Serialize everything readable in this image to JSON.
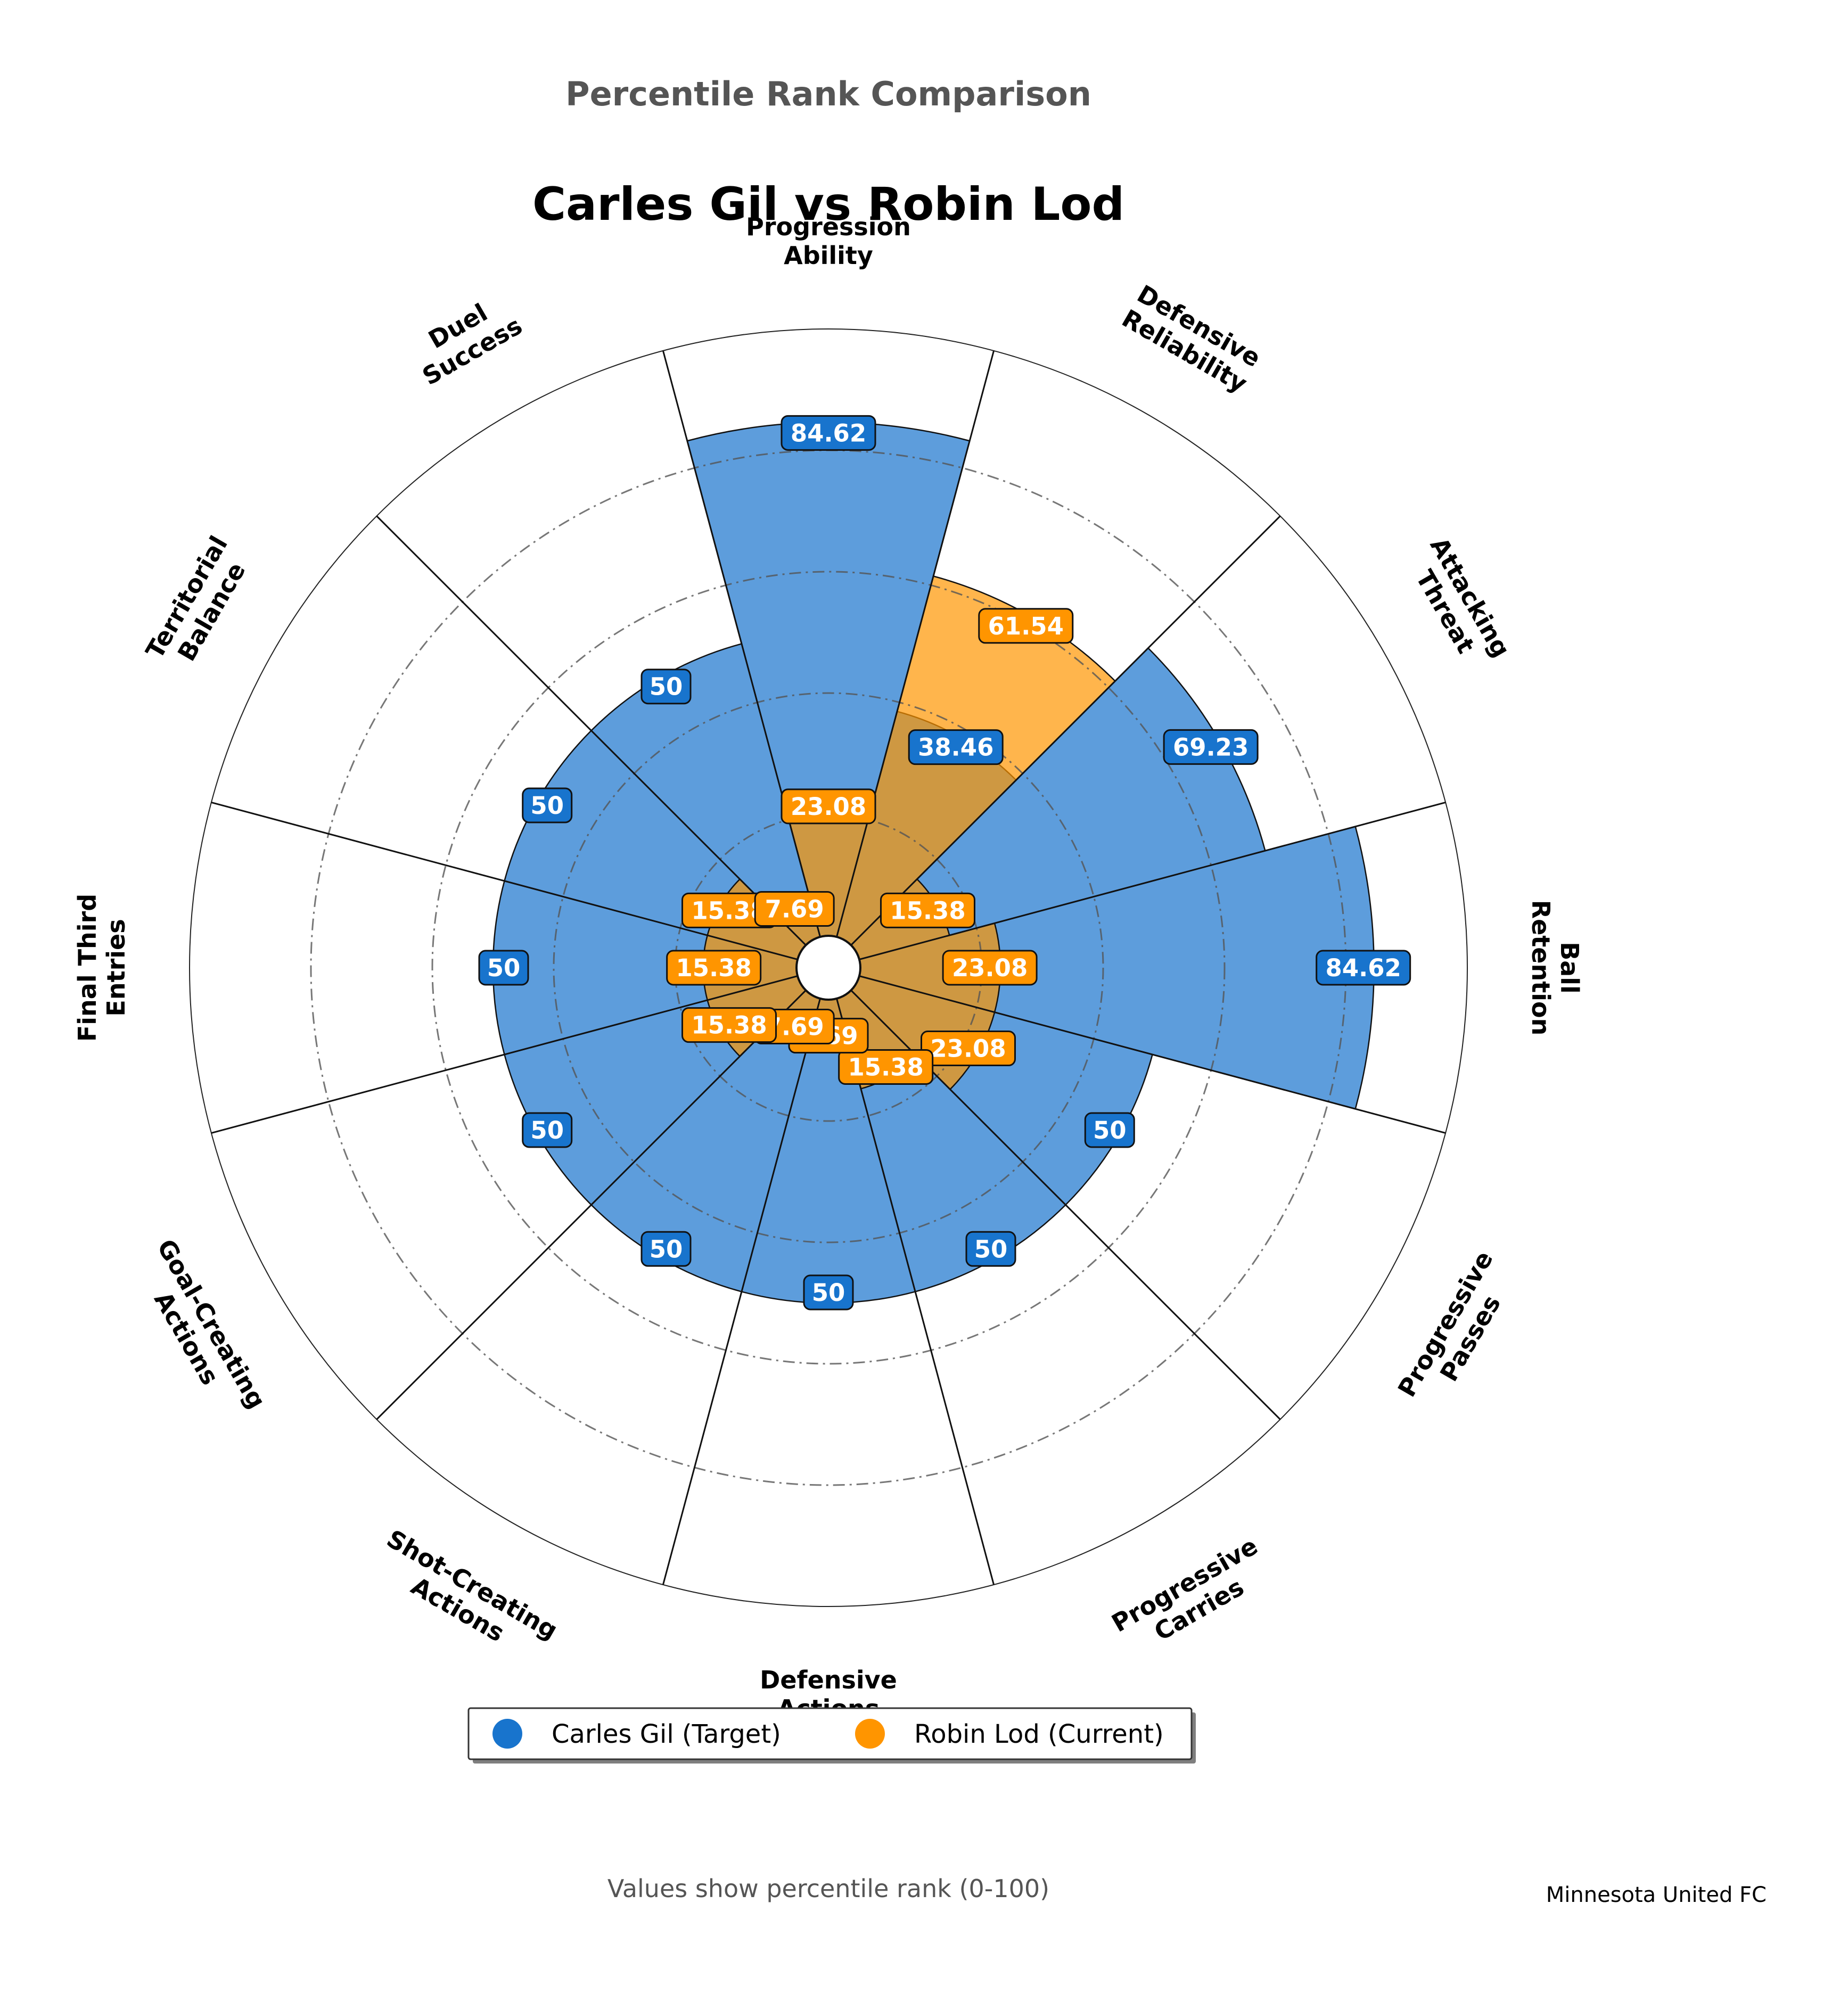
{
  "header": {
    "suptitle": "Percentile Rank Comparison",
    "title": "Carles Gil vs Robin Lod"
  },
  "chart_data": {
    "type": "polar-bar",
    "title": "Carles Gil vs Robin Lod",
    "subtitle": "Percentile Rank Comparison",
    "categories": [
      "Progression\nAbility",
      "Defensive\nReliability",
      "Attacking\nThreat",
      "Ball\nRetention",
      "Progressive\nPasses",
      "Progressive\nCarries",
      "Defensive\nActions",
      "Shot-Creating\nActions",
      "Goal-Creating\nActions",
      "Final Third\nEntries",
      "Territorial\nBalance",
      "Duel\nSuccess"
    ],
    "series": [
      {
        "name": "Carles Gil (Target)",
        "color": "#1874cd",
        "values": [
          84.62,
          38.46,
          69.23,
          84.62,
          50,
          50,
          50,
          50,
          50,
          50,
          50,
          50
        ]
      },
      {
        "name": "Robin Lod (Current)",
        "color": "#ff9500",
        "values": [
          23.08,
          61.54,
          15.38,
          23.08,
          23.08,
          15.38,
          7.69,
          7.69,
          15.38,
          15.38,
          15.38,
          7.69
        ]
      }
    ],
    "value_labels": [
      [
        "84.62",
        "38.46",
        "69.23",
        "84.62",
        "50",
        "50",
        "50",
        "50",
        "50",
        "50",
        "50",
        "50"
      ],
      [
        "23.08",
        "61.54",
        "15.38",
        "23.08",
        "23.08",
        "15.38",
        "7.69",
        "7.69",
        "15.38",
        "15.38",
        "15.38",
        "7.69"
      ]
    ],
    "rlim": [
      0,
      100
    ],
    "grid_rings": [
      20,
      40,
      60,
      80
    ],
    "grid": true,
    "direction": "clockwise",
    "start": "top",
    "legend_position": "bottom-center"
  },
  "legend": {
    "items": [
      {
        "label": "Carles Gil (Target)",
        "color": "#1874cd"
      },
      {
        "label": "Robin Lod (Current)",
        "color": "#ff9500"
      }
    ]
  },
  "footer": {
    "note": "Values show percentile rank (0-100)",
    "source": "Minnesota United FC"
  }
}
